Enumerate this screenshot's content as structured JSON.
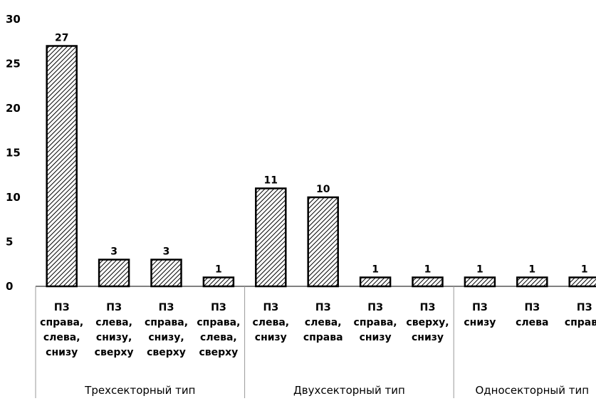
{
  "chart_data": {
    "type": "bar",
    "pattern": "diagonal-hatch",
    "categories": [
      [
        "ПЗ",
        "справа,",
        "слева,",
        "снизу"
      ],
      [
        "ПЗ",
        "слева,",
        "снизу,",
        "сверху"
      ],
      [
        "ПЗ",
        "справа,",
        "снизу,",
        "сверху"
      ],
      [
        "ПЗ",
        "справа,",
        "слева,",
        "сверху"
      ],
      [
        "ПЗ",
        "слева,",
        "снизу"
      ],
      [
        "ПЗ",
        "слева,",
        "справа"
      ],
      [
        "ПЗ",
        "справа,",
        "снизу"
      ],
      [
        "ПЗ",
        "сверху,",
        "снизу"
      ],
      [
        "ПЗ",
        "снизу"
      ],
      [
        "ПЗ",
        "слева"
      ],
      [
        "ПЗ",
        "справа"
      ]
    ],
    "values": [
      27,
      3,
      3,
      1,
      11,
      10,
      1,
      1,
      1,
      1,
      1
    ],
    "data_labels": [
      "27",
      "3",
      "3",
      "1",
      "11",
      "10",
      "1",
      "1",
      "1",
      "1",
      "1"
    ],
    "groups": [
      {
        "label": "Трехсекторный тип",
        "start": 0,
        "end": 3
      },
      {
        "label": "Двухсекторный тип",
        "start": 4,
        "end": 7
      },
      {
        "label": "Односекторный тип",
        "start": 8,
        "end": 10
      }
    ],
    "yticks": [
      "0",
      "5",
      "10",
      "15",
      "20",
      "25",
      "30"
    ],
    "ylim": [
      0,
      30
    ],
    "grid": false,
    "legend": "none",
    "colors": {
      "bar_fill": "#ffffff",
      "hatch": "#000000",
      "axis": "#000000",
      "divider": "#999999"
    }
  }
}
